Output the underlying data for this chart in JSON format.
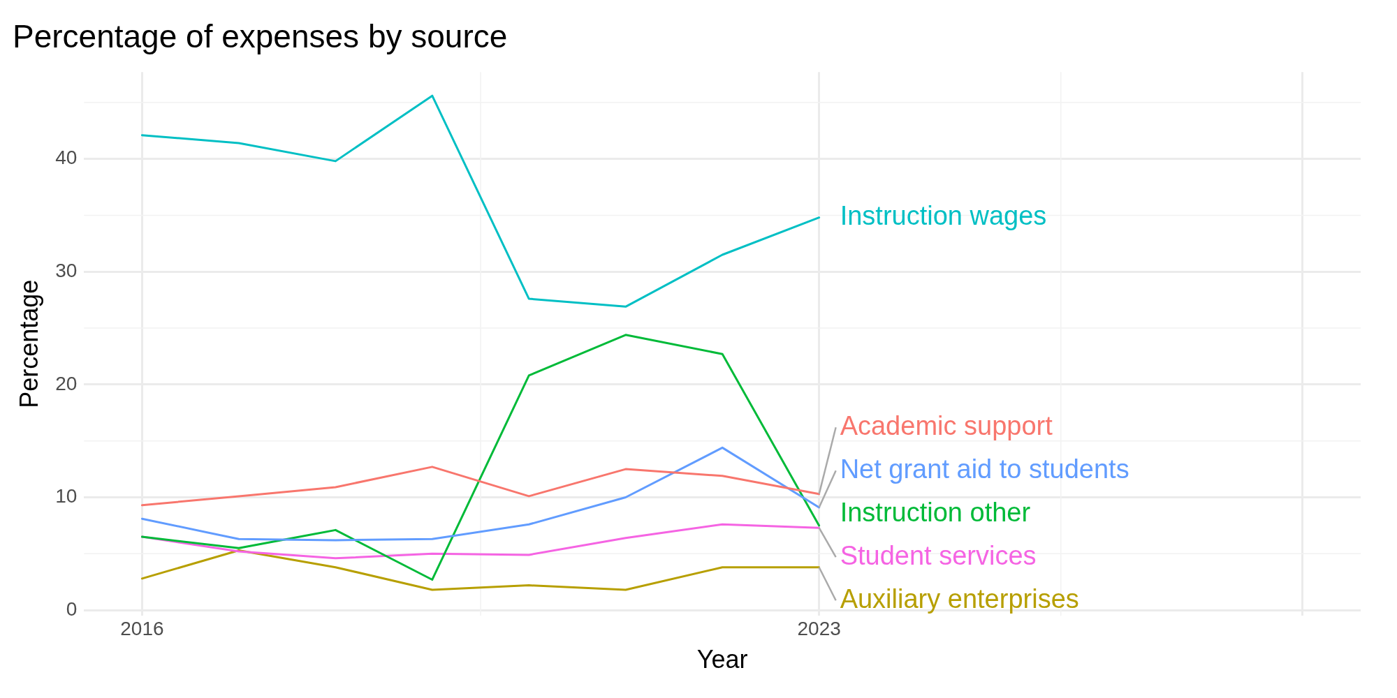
{
  "chart_data": {
    "type": "line",
    "title": "Percentage of expenses by source",
    "xlabel": "Year",
    "ylabel": "Percentage",
    "x": [
      2016,
      2017,
      2018,
      2019,
      2020,
      2021,
      2022,
      2023
    ],
    "series": [
      {
        "name": "Instruction wages",
        "color": "#00bfc4",
        "values": [
          42.1,
          41.4,
          39.8,
          45.6,
          27.6,
          26.9,
          31.5,
          34.8
        ]
      },
      {
        "name": "Academic support",
        "color": "#f8766d",
        "values": [
          9.3,
          10.1,
          10.9,
          12.7,
          10.1,
          12.5,
          11.9,
          10.3
        ]
      },
      {
        "name": "Net grant aid to students",
        "color": "#619cff",
        "values": [
          8.1,
          6.3,
          6.2,
          6.3,
          7.6,
          10.0,
          14.4,
          9.1
        ]
      },
      {
        "name": "Instruction other",
        "color": "#00ba38",
        "values": [
          6.5,
          5.5,
          7.1,
          2.7,
          20.8,
          24.4,
          22.7,
          7.5
        ]
      },
      {
        "name": "Student services",
        "color": "#f564e3",
        "values": [
          6.5,
          5.2,
          4.6,
          5.0,
          4.9,
          6.4,
          7.6,
          7.3
        ]
      },
      {
        "name": "Auxiliary enterprises",
        "color": "#b79f00",
        "values": [
          2.8,
          5.3,
          3.8,
          1.8,
          2.2,
          1.8,
          3.8,
          3.8
        ]
      }
    ],
    "xlim": [
      2015.4,
      2028.6
    ],
    "xticks": [
      2016,
      2023,
      {
        "value": 2028,
        "label": null
      }
    ],
    "ylim": [
      -0.5,
      47.7
    ],
    "yticks": [
      0,
      10,
      20,
      30,
      40
    ],
    "grid": true,
    "legend": false,
    "marker": "none",
    "line_style": "solid"
  }
}
